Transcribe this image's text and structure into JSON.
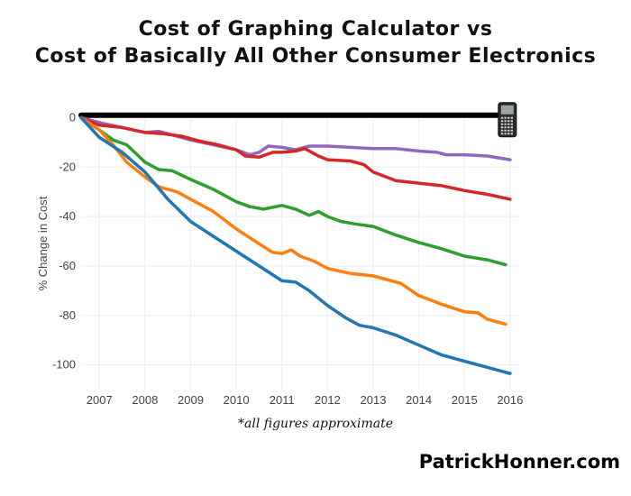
{
  "chart_data": {
    "type": "line",
    "title_lines": [
      "Cost of Graphing Calculator vs",
      "Cost of Basically All Other Consumer Electronics"
    ],
    "ylabel": "% Change in Cost",
    "xlabel": "*all figures approximate",
    "ylim": [
      -110,
      2
    ],
    "xlim": [
      2006.6,
      2016.2
    ],
    "x_ticks": [
      2007,
      2008,
      2009,
      2010,
      2011,
      2012,
      2013,
      2014,
      2015,
      2016
    ],
    "y_ticks": [
      0,
      -20,
      -40,
      -60,
      -80,
      -100
    ],
    "grid": true,
    "legend": "none",
    "series": [
      {
        "name": "graphing-calculator",
        "color": "#000000",
        "x": [
          2006.6,
          2015.9
        ],
        "y": [
          1,
          1
        ]
      },
      {
        "name": "purple",
        "color": "#9467bd",
        "x": [
          2006.6,
          2007.0,
          2007.5,
          2008.0,
          2008.3,
          2008.6,
          2009.0,
          2009.5,
          2010.0,
          2010.3,
          2010.5,
          2010.7,
          2011.0,
          2011.3,
          2011.6,
          2012.0,
          2012.5,
          2013.0,
          2013.5,
          2014.0,
          2014.4,
          2014.6,
          2015.0,
          2015.5,
          2016.0
        ],
        "y": [
          0,
          -2,
          -4,
          -6,
          -5.5,
          -7,
          -9,
          -11,
          -13,
          -15,
          -14,
          -11.5,
          -12,
          -13,
          -11.5,
          -11.5,
          -12,
          -12.5,
          -12.5,
          -13.5,
          -14,
          -15,
          -15,
          -15.5,
          -17
        ]
      },
      {
        "name": "red",
        "color": "#d62728",
        "x": [
          2006.6,
          2007.0,
          2007.5,
          2008.0,
          2008.4,
          2008.8,
          2009.2,
          2009.6,
          2010.0,
          2010.2,
          2010.5,
          2010.8,
          2011.0,
          2011.3,
          2011.5,
          2011.8,
          2012.0,
          2012.5,
          2012.8,
          2013.0,
          2013.5,
          2014.0,
          2014.5,
          2015.0,
          2015.5,
          2016.0
        ],
        "y": [
          0,
          -3,
          -4,
          -6,
          -6.5,
          -7.5,
          -9.5,
          -11,
          -13,
          -15.5,
          -16,
          -14,
          -14,
          -13.5,
          -12.5,
          -15.5,
          -17,
          -17.5,
          -19,
          -22,
          -25.5,
          -26.5,
          -27.5,
          -29.5,
          -31,
          -33
        ]
      },
      {
        "name": "green",
        "color": "#2ca02c",
        "x": [
          2006.6,
          2007.0,
          2007.3,
          2007.6,
          2008.0,
          2008.3,
          2008.6,
          2009.0,
          2009.5,
          2010.0,
          2010.3,
          2010.6,
          2011.0,
          2011.3,
          2011.6,
          2011.8,
          2012.0,
          2012.3,
          2012.6,
          2013.0,
          2013.5,
          2014.0,
          2014.5,
          2015.0,
          2015.5,
          2015.9
        ],
        "y": [
          0,
          -5,
          -9,
          -11,
          -18,
          -21,
          -21.5,
          -25,
          -29,
          -34,
          -36,
          -37,
          -35.5,
          -37,
          -39.5,
          -38,
          -40,
          -42,
          -43,
          -44,
          -47.5,
          -50.5,
          -53,
          -56,
          -57.5,
          -59.5
        ]
      },
      {
        "name": "orange",
        "color": "#ff7f0e",
        "x": [
          2006.6,
          2007.0,
          2007.3,
          2007.6,
          2008.0,
          2008.3,
          2008.7,
          2009.0,
          2009.5,
          2010.0,
          2010.5,
          2010.8,
          2011.0,
          2011.2,
          2011.4,
          2011.7,
          2012.0,
          2012.5,
          2013.0,
          2013.3,
          2013.6,
          2014.0,
          2014.5,
          2015.0,
          2015.3,
          2015.5,
          2015.9
        ],
        "y": [
          0,
          -5,
          -11,
          -18,
          -24,
          -28,
          -30,
          -33,
          -38,
          -45,
          -51,
          -54.5,
          -55,
          -53.5,
          -56,
          -58,
          -61,
          -63,
          -64,
          -65.5,
          -67,
          -72,
          -75.5,
          -78.5,
          -79,
          -81.5,
          -83.5
        ]
      },
      {
        "name": "blue",
        "color": "#1f77b4",
        "x": [
          2006.6,
          2007.0,
          2007.5,
          2008.0,
          2008.5,
          2009.0,
          2009.5,
          2010.0,
          2010.5,
          2011.0,
          2011.3,
          2011.6,
          2012.0,
          2012.4,
          2012.7,
          2013.0,
          2013.5,
          2014.0,
          2014.5,
          2015.0,
          2015.5,
          2016.0
        ],
        "y": [
          0,
          -8,
          -14,
          -22,
          -33,
          -42,
          -48,
          -54,
          -60,
          -66,
          -66.5,
          -70,
          -76,
          -81,
          -84,
          -85,
          -88,
          -92,
          -96,
          -98.5,
          -101,
          -103.5
        ]
      }
    ]
  },
  "footer": {
    "watermark": "PatrickHonner.com"
  }
}
